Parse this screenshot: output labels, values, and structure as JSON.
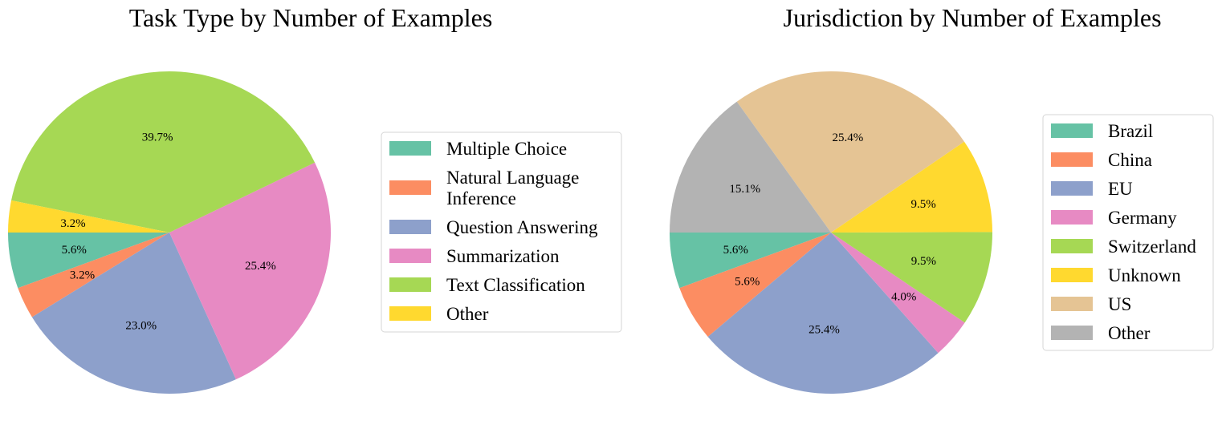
{
  "chart_data": [
    {
      "type": "pie",
      "title": "Task Type by Number of Examples",
      "start_angle_deg": 180,
      "direction": "counterclockwise",
      "legend": "right",
      "slices": [
        {
          "label": "Multiple Choice",
          "value": 5.6,
          "pct_label": "5.6%",
          "color": "#66c2a5"
        },
        {
          "label": "Natural Language Inference",
          "legend_lines": [
            "Natural Language",
            "Inference"
          ],
          "value": 3.2,
          "pct_label": "3.2%",
          "color": "#fc8d62"
        },
        {
          "label": "Question Answering",
          "value": 23.0,
          "pct_label": "23.0%",
          "color": "#8da0cb"
        },
        {
          "label": "Summarization",
          "value": 25.4,
          "pct_label": "25.4%",
          "color": "#e78ac3"
        },
        {
          "label": "Text Classification",
          "value": 39.7,
          "pct_label": "39.7%",
          "color": "#a6d854"
        },
        {
          "label": "Other",
          "value": 3.2,
          "pct_label": "3.2%",
          "color": "#ffd92f"
        }
      ]
    },
    {
      "type": "pie",
      "title": "Jurisdiction by Number of Examples",
      "start_angle_deg": 180,
      "direction": "counterclockwise",
      "legend": "right",
      "slices": [
        {
          "label": "Brazil",
          "value": 5.6,
          "pct_label": "5.6%",
          "color": "#66c2a5"
        },
        {
          "label": "China",
          "value": 5.6,
          "pct_label": "5.6%",
          "color": "#fc8d62"
        },
        {
          "label": "EU",
          "value": 25.4,
          "pct_label": "25.4%",
          "color": "#8da0cb"
        },
        {
          "label": "Germany",
          "value": 4.0,
          "pct_label": "4.0%",
          "color": "#e78ac3"
        },
        {
          "label": "Switzerland",
          "value": 9.5,
          "pct_label": "9.5%",
          "color": "#a6d854"
        },
        {
          "label": "Unknown",
          "value": 9.5,
          "pct_label": "9.5%",
          "color": "#ffd92f"
        },
        {
          "label": "US",
          "value": 25.4,
          "pct_label": "25.4%",
          "color": "#e5c494"
        },
        {
          "label": "Other",
          "value": 15.1,
          "pct_label": "15.1%",
          "color": "#b3b3b3"
        }
      ]
    }
  ]
}
